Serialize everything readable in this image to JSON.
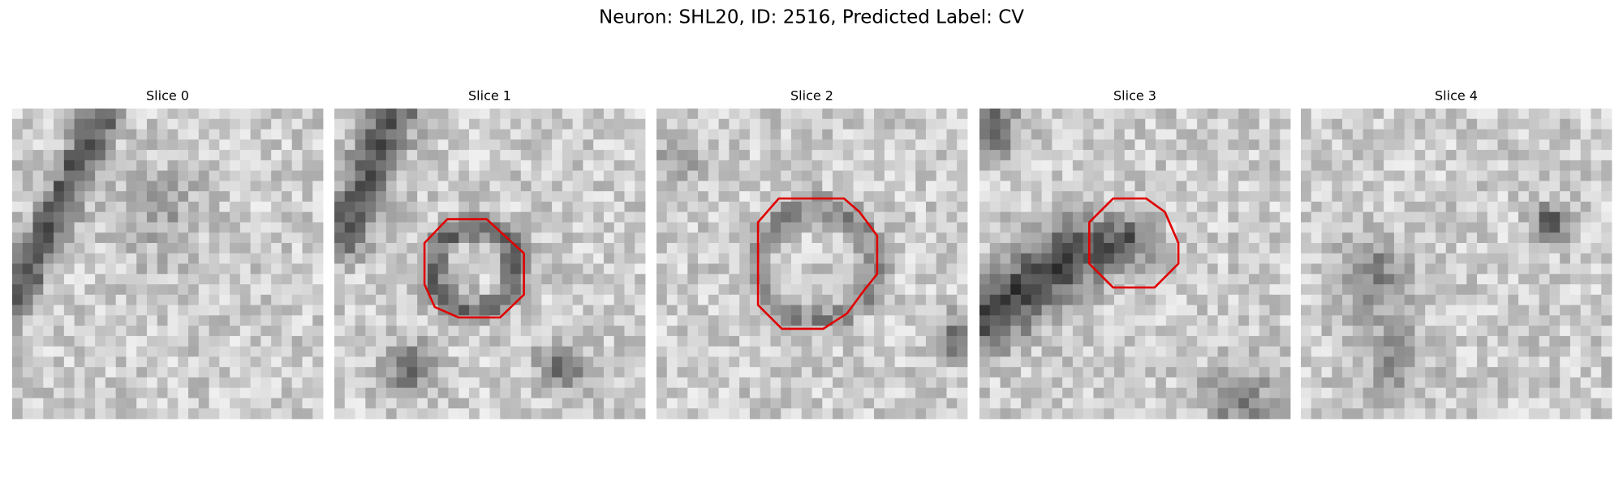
{
  "title": "Neuron: SHL20, ID: 2516, Predicted Label: CV",
  "panels": [
    "Slice 0",
    "Slice 1",
    "Slice 2",
    "Slice 3",
    "Slice 4"
  ]
}
